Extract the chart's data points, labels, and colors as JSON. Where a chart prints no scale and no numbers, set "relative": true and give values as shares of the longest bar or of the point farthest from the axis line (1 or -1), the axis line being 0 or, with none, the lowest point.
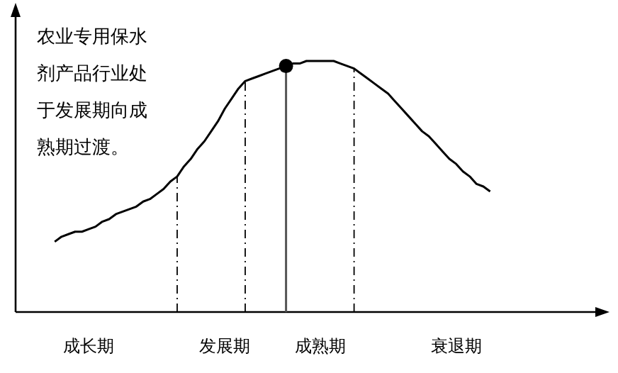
{
  "chart_data": {
    "type": "line",
    "relative": true,
    "categories": [
      null,
      null,
      null,
      null,
      null,
      "成长期",
      null,
      null,
      null,
      null,
      null,
      null,
      null,
      null,
      null,
      null,
      null,
      null,
      null,
      null,
      null,
      null,
      null,
      null,
      null,
      "发展期",
      null,
      null,
      null,
      null,
      null,
      null,
      null,
      null,
      null,
      null,
      null,
      null,
      null,
      "成熟期",
      null,
      null,
      null,
      null,
      null,
      null,
      null,
      null,
      null,
      null,
      null,
      null,
      null,
      null,
      null,
      null,
      null,
      null,
      null,
      "衰退期",
      null,
      null,
      null,
      null,
      null
    ],
    "series": [
      {
        "color": "#000000",
        "line_style": "solid",
        "values": [
          0.28,
          0.3,
          0.31,
          0.32,
          0.32,
          0.33,
          0.34,
          0.36,
          0.37,
          0.39,
          0.4,
          0.41,
          0.42,
          0.44,
          0.45,
          0.47,
          0.49,
          0.52,
          0.54,
          0.58,
          0.61,
          0.65,
          0.68,
          0.72,
          0.76,
          0.81,
          0.85,
          0.89,
          0.92,
          0.93,
          0.94,
          0.95,
          0.96,
          0.97,
          0.98,
          0.99,
          0.99,
          1,
          1,
          1,
          1,
          1,
          0.99,
          0.98,
          0.97,
          0.95,
          0.93,
          0.91,
          0.89,
          0.87,
          0.84,
          0.81,
          0.78,
          0.75,
          0.72,
          0.7,
          0.67,
          0.64,
          0.61,
          0.59,
          0.56,
          0.54,
          0.51,
          0.5,
          0.48
        ]
      },
      {
        "type": "scatter",
        "color": "#000000",
        "marker": "circle",
        "values": [
          null,
          null,
          null,
          null,
          null,
          null,
          null,
          null,
          null,
          null,
          null,
          null,
          null,
          null,
          null,
          null,
          null,
          null,
          null,
          null,
          null,
          null,
          null,
          null,
          null,
          null,
          null,
          null,
          null,
          null,
          null,
          null,
          null,
          null,
          0.98,
          null,
          null,
          null,
          null,
          null,
          null,
          null,
          null,
          null,
          null,
          null,
          null,
          null,
          null,
          null,
          null,
          null,
          null,
          null,
          null,
          null,
          null,
          null,
          null,
          null,
          null,
          null,
          null,
          null,
          null
        ]
      }
    ],
    "annotations": [
      "农业专用保水剂产品行业处于发展期向成熟期过渡。"
    ]
  }
}
